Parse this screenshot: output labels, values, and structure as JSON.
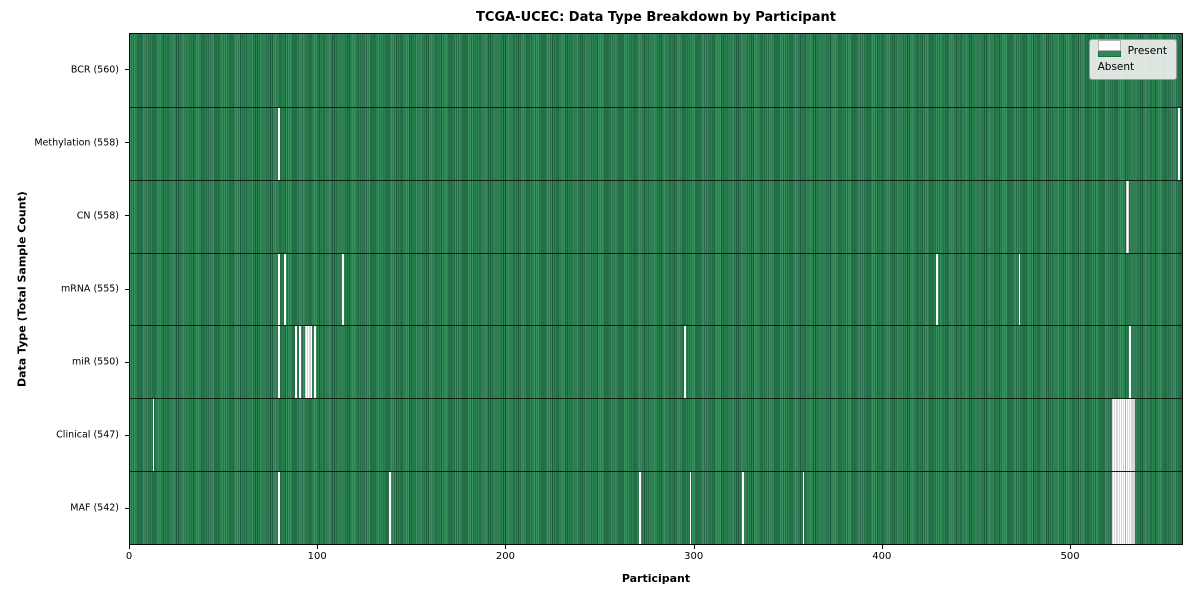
{
  "title": "TCGA-UCEC: Data Type Breakdown by Participant",
  "xlabel": "Participant",
  "ylabel": "Data Type (Total Sample Count)",
  "legend": {
    "present_label": "Present",
    "absent_label": "Absent"
  },
  "colors": {
    "present": "#2e8b57",
    "present_edge": "#1f6140",
    "absent": "#ffffff",
    "row_separator": "#101810",
    "legend_background": "#edefed"
  },
  "chart_data": {
    "type": "heatmap",
    "title": "TCGA-UCEC: Data Type Breakdown by Participant",
    "xlabel": "Participant",
    "ylabel": "Data Type (Total Sample Count)",
    "x_ticks": [
      0,
      100,
      200,
      300,
      400,
      500
    ],
    "xlim": [
      0,
      560
    ],
    "total_participants": 560,
    "grid": false,
    "legend_position": "upper right",
    "legend_entries": [
      "Present",
      "Absent"
    ],
    "rows": [
      {
        "label": "BCR (560)",
        "data_type": "BCR",
        "present_count": 560,
        "absent_participants": []
      },
      {
        "label": "Methylation (558)",
        "data_type": "Methylation",
        "present_count": 558,
        "absent_participants": [
          79,
          558
        ]
      },
      {
        "label": "CN (558)",
        "data_type": "CN",
        "present_count": 558,
        "absent_participants": [
          530,
          531
        ]
      },
      {
        "label": "mRNA (555)",
        "data_type": "mRNA",
        "present_count": 555,
        "absent_participants": [
          79,
          82,
          113,
          429,
          473
        ]
      },
      {
        "label": "miR (550)",
        "data_type": "miR",
        "present_count": 550,
        "absent_participants": [
          79,
          88,
          90,
          93,
          94,
          95,
          96,
          98,
          295,
          532
        ]
      },
      {
        "label": "Clinical (547)",
        "data_type": "Clinical",
        "present_count": 547,
        "absent_participants": [
          12,
          523,
          524,
          525,
          526,
          527,
          528,
          529,
          530,
          531,
          532,
          533,
          534
        ]
      },
      {
        "label": "MAF (542)",
        "data_type": "MAF",
        "present_count": 542,
        "absent_participants": [
          79,
          138,
          271,
          298,
          326,
          358,
          523,
          524,
          525,
          526,
          527,
          528,
          529,
          530,
          531,
          532,
          533,
          534
        ]
      }
    ]
  }
}
